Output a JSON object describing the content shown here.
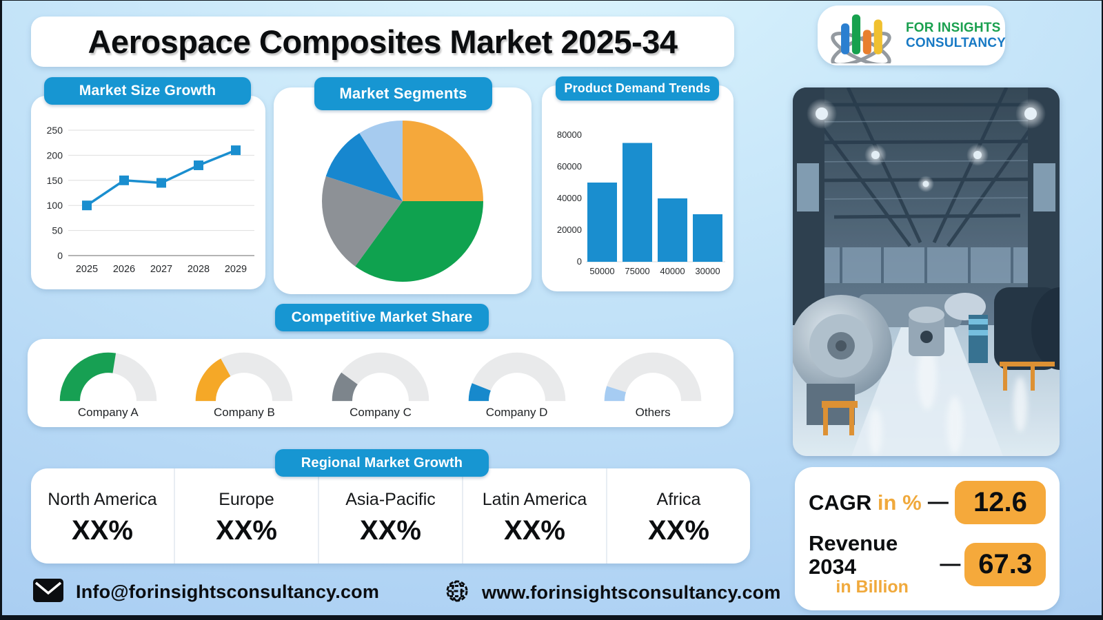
{
  "title": "Aerospace Composites Market 2025-34",
  "logo": {
    "line1": "FOR INSIGHTS",
    "line2": "CONSULTANCY",
    "line1_color": "#1aa04f",
    "line2_color": "#1779c4",
    "bar_colors": [
      "#2b7fd0",
      "#17a14e",
      "#e87f2e",
      "#f0c02f"
    ],
    "swoosh_color": "#949aa0"
  },
  "pills": {
    "market_size": "Market Size Growth",
    "segments": "Market Segments",
    "demand": "Product Demand Trends",
    "competitive": "Competitive Market Share",
    "regional": "Regional Market Growth"
  },
  "chart_data": [
    {
      "id": "market-size-line",
      "type": "line",
      "title": "Market Size Growth",
      "x": [
        "2025",
        "2026",
        "2027",
        "2028",
        "2029"
      ],
      "values": [
        100,
        150,
        145,
        180,
        210
      ],
      "ylim": [
        0,
        250
      ],
      "yticks": [
        0,
        50,
        100,
        150,
        200,
        250
      ],
      "line_color": "#1a8ecf",
      "marker": "square",
      "grid": true,
      "legend": "none"
    },
    {
      "id": "segments-pie",
      "type": "pie",
      "title": "Market Segments",
      "start_angle_deg": 0,
      "direction": "clockwise",
      "slices": [
        {
          "label": "slice-orange",
          "value": 25,
          "color": "#f5a83b"
        },
        {
          "label": "slice-green",
          "value": 35,
          "color": "#0fa24f"
        },
        {
          "label": "slice-gray",
          "value": 20,
          "color": "#8d9196"
        },
        {
          "label": "slice-blue",
          "value": 11,
          "color": "#1787cf"
        },
        {
          "label": "slice-lightblue",
          "value": 9,
          "color": "#a6cbef"
        }
      ]
    },
    {
      "id": "demand-bar",
      "type": "bar",
      "title": "Product Demand Trends",
      "categories": [
        "50000",
        "75000",
        "40000",
        "30000"
      ],
      "values": [
        50000,
        75000,
        40000,
        30000
      ],
      "ylim": [
        0,
        80000
      ],
      "yticks": [
        0,
        20000,
        40000,
        60000,
        80000
      ],
      "bar_color": "#1a8ecf",
      "grid": false
    },
    {
      "id": "competitive-gauges",
      "type": "gauge",
      "title": "Competitive Market Share",
      "track_color": "#e9eaeb",
      "items": [
        {
          "label": "Company A",
          "percent": 55,
          "color": "#17a053"
        },
        {
          "label": "Company B",
          "percent": 34,
          "color": "#f5a827"
        },
        {
          "label": "Company C",
          "percent": 20,
          "color": "#7d858c"
        },
        {
          "label": "Company D",
          "percent": 12,
          "color": "#1789cc"
        },
        {
          "label": "Others",
          "percent": 10,
          "color": "#a6ccf2"
        }
      ]
    }
  ],
  "regional": {
    "items": [
      {
        "name": "North America",
        "value": "XX%"
      },
      {
        "name": "Europe",
        "value": "XX%"
      },
      {
        "name": "Asia-Pacific",
        "value": "XX%"
      },
      {
        "name": "Latin America",
        "value": "XX%"
      },
      {
        "name": "Africa",
        "value": "XX%"
      }
    ]
  },
  "stats": {
    "dash": "—",
    "accent": "#f5a93b",
    "rows": [
      {
        "label": "CAGR",
        "sub": "in %",
        "value": "12.6"
      },
      {
        "label": "Revenue 2034",
        "sub": "in Billion",
        "value": "67.3"
      }
    ]
  },
  "footer": {
    "email": "Info@forinsightsconsultancy.com",
    "website": "www.forinsightsconsultancy.com"
  },
  "theme": {
    "pill_blue": "#1796d2",
    "chart_blue": "#1a8ecf",
    "card_white": "#ffffff",
    "stat_orange": "#f5a93b",
    "bg_light": "#dcf5fd",
    "bg_dark": "#a5caf1"
  }
}
